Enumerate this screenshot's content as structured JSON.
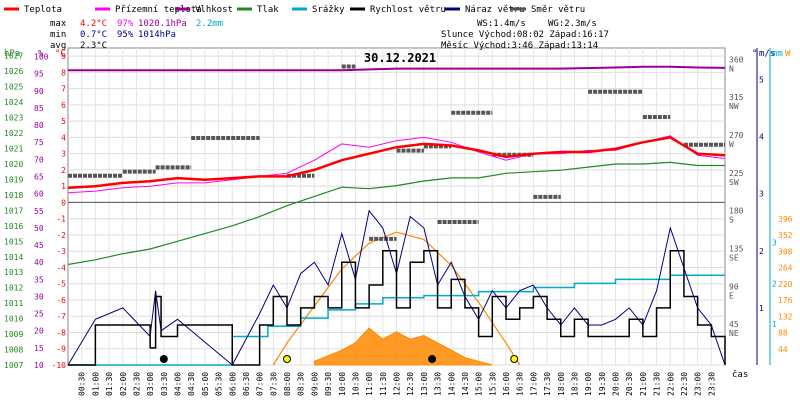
{
  "chart_data": {
    "type": "line",
    "title": "30.12.2021",
    "legend": [
      {
        "label": "Teplota",
        "color": "#ff0000"
      },
      {
        "label": "Přízemní teplota",
        "color": "#ff00ff"
      },
      {
        "label": "Vlhkost",
        "color": "#990099"
      },
      {
        "label": "Tlak",
        "color": "#228822"
      },
      {
        "label": "Srážky",
        "color": "#00aacc"
      },
      {
        "label": "Rychlost větru",
        "color": "#000000"
      },
      {
        "label": "Náraz větru",
        "color": "#000080"
      },
      {
        "label": "Směr větru",
        "color": "#555555"
      }
    ],
    "stats": {
      "max_label": "max",
      "max_temp": "4.2°C",
      "max_hum": "97%",
      "max_press": "1020.1hPa",
      "max_rain": "2.2mm",
      "min_label": "min",
      "min_temp": "0.7°C",
      "min_hum": "95%",
      "min_press": "1014hPa",
      "avg_label": "avg",
      "avg_temp": "2.3°C",
      "ws": "WS:1.4m/s",
      "wg": "WG:2.3m/s",
      "sun": "Slunce Východ:08:02  Západ:16:17",
      "moon": "Měsíc  Východ:3:46   Západ:13:14"
    },
    "axes": {
      "hpa_unit": "hPa",
      "pct_unit": "%",
      "c_unit": "°C",
      "ms_unit": "m/s",
      "mm_unit": "mm",
      "w_unit": "W",
      "deg_unit": "°",
      "hpa_ticks": [
        1027,
        1026,
        1025,
        1024,
        1023,
        1022,
        1021,
        1020,
        1019,
        1018,
        1017,
        1016,
        1015,
        1014,
        1013,
        1012,
        1011,
        1010,
        1009,
        1008,
        1007
      ],
      "pct_ticks": [
        100,
        95,
        90,
        85,
        80,
        75,
        70,
        65,
        60,
        55,
        50,
        45,
        40,
        35,
        30,
        25,
        20,
        15,
        10
      ],
      "c_ticks": [
        9,
        8,
        7,
        6,
        5,
        4,
        3,
        2,
        1,
        0,
        -1,
        -2,
        -3,
        -4,
        -5,
        -6,
        -7,
        -8,
        -9,
        -10
      ],
      "dir_ticks": [
        {
          "deg": "360",
          "lab": "N",
          "v": 360
        },
        {
          "deg": "315",
          "lab": "NW",
          "v": 315
        },
        {
          "deg": "270",
          "lab": "W",
          "v": 270
        },
        {
          "deg": "225",
          "lab": "SW",
          "v": 225
        },
        {
          "deg": "180",
          "lab": "S",
          "v": 180
        },
        {
          "deg": "135",
          "lab": "SE",
          "v": 135
        },
        {
          "deg": "90",
          "lab": "E",
          "v": 90
        },
        {
          "deg": "45",
          "lab": "NE",
          "v": 45
        }
      ],
      "ms_ticks": [
        5,
        4,
        3,
        2,
        1
      ],
      "mm_ticks": [
        3,
        2,
        1
      ],
      "w_ticks": [
        396,
        352,
        308,
        264,
        220,
        176,
        132,
        88,
        44
      ],
      "x_ticks": [
        "00:30",
        "01:00",
        "01:30",
        "02:00",
        "02:30",
        "03:00",
        "03:30",
        "04:00",
        "04:30",
        "05:00",
        "05:30",
        "06:00",
        "06:30",
        "07:00",
        "07:30",
        "08:00",
        "08:30",
        "09:00",
        "09:30",
        "10:00",
        "10:30",
        "11:00",
        "11:30",
        "12:00",
        "12:30",
        "13:00",
        "13:30",
        "14:00",
        "14:30",
        "15:00",
        "15:30",
        "16:00",
        "16:30",
        "17:00",
        "17:30",
        "18:00",
        "18:30",
        "19:00",
        "19:30",
        "20:00",
        "20:30",
        "21:00",
        "21:30",
        "22:00",
        "22:30",
        "23:00",
        "23:30"
      ],
      "x_unit": "čas"
    },
    "series": [
      {
        "name": "Teplota",
        "color": "#ff0000",
        "x": [
          0,
          1,
          2,
          3,
          4,
          5,
          6,
          7,
          8,
          9,
          10,
          11,
          12,
          13,
          14,
          15,
          16,
          17,
          18,
          19,
          20,
          21,
          22,
          23,
          24
        ],
        "y": [
          0.9,
          1.0,
          1.2,
          1.3,
          1.5,
          1.4,
          1.5,
          1.6,
          1.6,
          2.0,
          2.6,
          3.0,
          3.4,
          3.6,
          3.5,
          3.2,
          2.8,
          3.0,
          3.1,
          3.1,
          3.3,
          3.7,
          4.0,
          3.0,
          2.9
        ]
      },
      {
        "name": "Přízemní teplota",
        "color": "#ff00ff",
        "x": [
          0,
          1,
          2,
          3,
          4,
          5,
          6,
          7,
          8,
          9,
          10,
          11,
          12,
          13,
          14,
          15,
          16,
          17,
          18,
          19,
          20,
          21,
          22,
          23,
          24
        ],
        "y": [
          0.6,
          0.7,
          0.9,
          1.0,
          1.2,
          1.2,
          1.4,
          1.6,
          1.8,
          2.6,
          3.6,
          3.4,
          3.8,
          4.0,
          3.7,
          3.1,
          2.6,
          3.0,
          3.0,
          3.2,
          3.2,
          3.7,
          4.1,
          2.9,
          2.7
        ]
      },
      {
        "name": "Vlhkost",
        "color": "#990099",
        "x": [
          0,
          2,
          4,
          6,
          8,
          10,
          12,
          14,
          16,
          18,
          20,
          21,
          22,
          23,
          24
        ],
        "y": [
          96,
          96,
          96,
          96,
          96,
          96,
          96.5,
          96.5,
          96.5,
          96.5,
          96.8,
          97,
          97,
          96.8,
          96.7
        ]
      },
      {
        "name": "Tlak",
        "color": "#228822",
        "x": [
          0,
          1,
          2,
          3,
          4,
          5,
          6,
          7,
          8,
          9,
          10,
          11,
          12,
          13,
          14,
          15,
          16,
          17,
          18,
          19,
          20,
          21,
          22,
          23,
          24
        ],
        "y": [
          1013.5,
          1013.8,
          1014.2,
          1014.5,
          1015.0,
          1015.5,
          1016.0,
          1016.6,
          1017.3,
          1017.9,
          1018.5,
          1018.4,
          1018.6,
          1018.9,
          1019.1,
          1019.1,
          1019.4,
          1019.5,
          1019.6,
          1019.8,
          1020.0,
          1020.0,
          1020.1,
          1019.9,
          1019.9
        ]
      },
      {
        "name": "Srážky",
        "color": "#00aacc",
        "x": [
          0,
          2,
          3.5,
          6,
          7.3,
          8.5,
          9.5,
          10.5,
          11.5,
          13,
          15,
          17,
          18.5,
          20,
          22,
          24
        ],
        "y": [
          0.0,
          0.0,
          0.0,
          0.7,
          0.95,
          1.15,
          1.35,
          1.5,
          1.65,
          1.7,
          1.8,
          1.9,
          2.0,
          2.1,
          2.2,
          2.2
        ]
      }
    ],
    "wind_speed": {
      "x": [
        0,
        1,
        2,
        3,
        3.2,
        3.4,
        4,
        6,
        7,
        7.5,
        8,
        8.5,
        9,
        9.5,
        10,
        10.5,
        11,
        11.5,
        12,
        12.5,
        13,
        13.5,
        14,
        14.5,
        15,
        15.5,
        16,
        16.5,
        17,
        17.5,
        18,
        18.5,
        19,
        19.5,
        20,
        20.5,
        21,
        21.5,
        22,
        22.5,
        23,
        23.5,
        24
      ],
      "y": [
        0,
        0.7,
        0.7,
        0.3,
        1.2,
        0.5,
        0.7,
        0,
        0.7,
        1.2,
        0.7,
        1.0,
        1.2,
        1.0,
        1.8,
        1.0,
        1.4,
        2.0,
        1.0,
        1.8,
        2.0,
        1.0,
        1.5,
        1.0,
        0.5,
        1.2,
        0.8,
        1.0,
        1.2,
        0.8,
        0.5,
        0.8,
        0.5,
        0.5,
        0.5,
        0.8,
        0.5,
        1.0,
        2.0,
        1.2,
        0.7,
        0.5,
        0
      ]
    },
    "wind_gust": {
      "x": [
        0,
        1,
        2,
        3,
        3.2,
        3.4,
        4,
        6,
        7,
        7.5,
        8,
        8.5,
        9,
        9.5,
        10,
        10.5,
        11,
        11.5,
        12,
        12.5,
        13,
        13.5,
        14,
        14.5,
        15,
        15.5,
        16,
        16.5,
        17,
        17.5,
        18,
        18.5,
        19,
        19.5,
        20,
        20.5,
        21,
        21.5,
        22,
        22.5,
        23,
        23.5,
        24
      ],
      "y": [
        0,
        0.8,
        1.0,
        0.5,
        1.3,
        0.6,
        0.8,
        0,
        0.9,
        1.4,
        1.0,
        1.6,
        1.8,
        1.4,
        2.3,
        1.5,
        2.7,
        2.4,
        1.6,
        2.6,
        2.4,
        1.4,
        1.8,
        1.2,
        0.8,
        1.3,
        1.0,
        1.3,
        1.4,
        1.0,
        0.7,
        1.0,
        0.7,
        0.7,
        0.8,
        1.0,
        0.7,
        1.3,
        2.4,
        1.7,
        1.0,
        0.7,
        0
      ]
    },
    "wind_dir_segments": [
      {
        "x0": 0,
        "x1": 2,
        "v": 225
      },
      {
        "x0": 2,
        "x1": 3.2,
        "v": 230
      },
      {
        "x0": 3.2,
        "x1": 4.5,
        "v": 235
      },
      {
        "x0": 4.5,
        "x1": 7,
        "v": 270
      },
      {
        "x0": 8,
        "x1": 9,
        "v": 225
      },
      {
        "x0": 10,
        "x1": 10.5,
        "v": 355
      },
      {
        "x0": 12,
        "x1": 13,
        "v": 255
      },
      {
        "x0": 13,
        "x1": 14,
        "v": 260
      },
      {
        "x0": 14,
        "x1": 15.5,
        "v": 300
      },
      {
        "x0": 15.5,
        "x1": 17,
        "v": 250
      },
      {
        "x0": 17,
        "x1": 18,
        "v": 200
      },
      {
        "x0": 19,
        "x1": 21,
        "v": 325
      },
      {
        "x0": 21,
        "x1": 22,
        "v": 295
      },
      {
        "x0": 22.5,
        "x1": 24,
        "v": 262
      },
      {
        "x0": 11,
        "x1": 12,
        "v": 150
      },
      {
        "x0": 13.5,
        "x1": 15,
        "v": 170
      }
    ],
    "solar": {
      "x": [
        7.5,
        8,
        9,
        10,
        11,
        12,
        13,
        14,
        15,
        16,
        16.5
      ],
      "y": [
        0,
        60,
        160,
        260,
        330,
        360,
        340,
        270,
        170,
        60,
        0
      ]
    },
    "solar_measured": {
      "x": [
        9,
        10,
        10.5,
        11,
        11.5,
        12,
        12.5,
        13,
        13.5,
        14,
        14.5,
        15,
        15.5
      ],
      "y": [
        10,
        40,
        60,
        100,
        70,
        90,
        70,
        80,
        60,
        40,
        20,
        10,
        0
      ]
    },
    "markers": [
      {
        "x": 3.5,
        "kind": "moonrise"
      },
      {
        "x": 8.0,
        "kind": "sunrise"
      },
      {
        "x": 13.3,
        "kind": "moonset"
      },
      {
        "x": 16.3,
        "kind": "sunset"
      }
    ]
  }
}
